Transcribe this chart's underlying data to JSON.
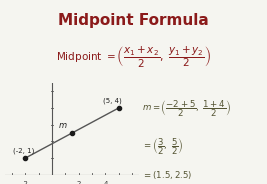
{
  "title": "Midpoint Formula",
  "title_color": "#8B1A1A",
  "bg_color": "#f5f5f0",
  "panel_bg": "#fdf5dc",
  "formula_text": "Midpoint = ",
  "formula_color": "#8B1A1A",
  "point1": [
    -2,
    1
  ],
  "point2": [
    5,
    4
  ],
  "midpoint": [
    1.5,
    2.5
  ],
  "midpoint_label": "m",
  "point1_label": "(-2, 1)",
  "point2_label": "(5, 4)",
  "line_color": "#555555",
  "dot_color": "#1a1a1a",
  "axis_color": "#555555",
  "calc_lines": [
    "m = \\left(\\dfrac{-2+5}{2}, \\dfrac{1+4}{2}\\right)",
    "= \\left(\\dfrac{3}{2}, \\dfrac{5}{2}\\right)",
    "= (1.5, 2.5)"
  ]
}
